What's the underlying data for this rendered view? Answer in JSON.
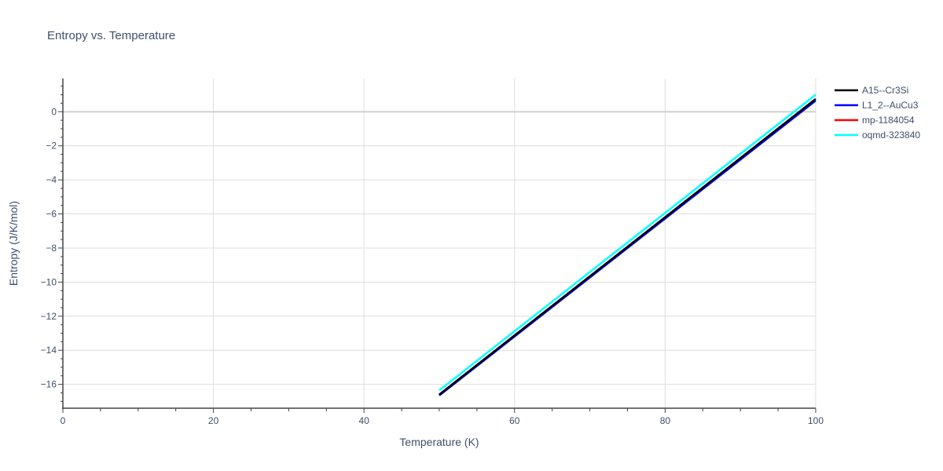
{
  "chart_data": {
    "type": "line",
    "title": "Entropy vs. Temperature",
    "xlabel": "Temperature (K)",
    "ylabel": "Entropy (J/K/mol)",
    "xlim": [
      0,
      100
    ],
    "ylim": [
      -17.4,
      1.95
    ],
    "x_ticks": [
      0,
      20,
      40,
      60,
      80,
      100
    ],
    "x_tick_labels": [
      "0",
      "20",
      "40",
      "60",
      "80",
      "100"
    ],
    "y_ticks": [
      0,
      -2,
      -4,
      -6,
      -8,
      -10,
      -12,
      -14,
      -16
    ],
    "y_tick_labels": [
      "0",
      "−2",
      "−4",
      "−6",
      "−8",
      "−10",
      "−12",
      "−14",
      "−16"
    ],
    "grid": true,
    "legend_position": "right",
    "series": [
      {
        "name": "A15--Cr3Si",
        "color": "#000000",
        "x": [
          50,
          100
        ],
        "y": [
          -16.6,
          0.75
        ]
      },
      {
        "name": "L1_2--AuCu3",
        "color": "#0000ff",
        "x": [
          50,
          100
        ],
        "y": [
          -16.65,
          0.65
        ]
      },
      {
        "name": "mp-1184054",
        "color": "#ff0000",
        "x": [
          50,
          100
        ],
        "y": [
          -16.6,
          0.75
        ]
      },
      {
        "name": "oqmd-323840",
        "color": "#00ffff",
        "x": [
          50,
          100
        ],
        "y": [
          -16.35,
          1.0
        ]
      }
    ]
  }
}
